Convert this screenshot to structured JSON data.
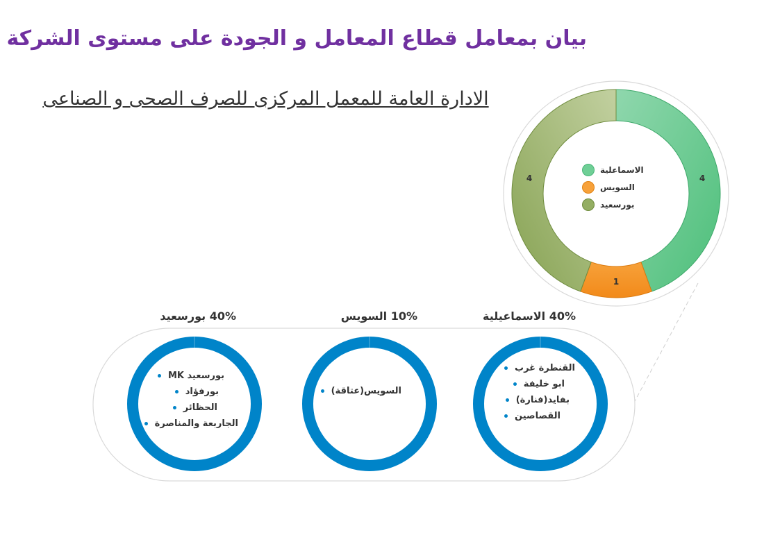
{
  "title": "بيان بمعامل قطاع المعامل و الجودة على مستوى الشركة",
  "subtitle": "الادارة العامة للمعمل المركزى للصرف الصحى و الصناعى",
  "chart_data": [
    {
      "type": "donut",
      "categories": [
        "الاسماعلية",
        "السويس",
        "بورسعيد"
      ],
      "values": [
        4,
        1,
        4
      ],
      "colors": [
        "#5fc88a",
        "#f7941d",
        "#8aa655"
      ],
      "legend": "center"
    },
    {
      "type": "donut",
      "label": "40%  الاسماعيلية",
      "value_percent": 40,
      "color": "#0084c9",
      "items": [
        "القنطرة غرب",
        "ابو خليفة",
        "بفايد(فنارة)",
        "القصاصين"
      ]
    },
    {
      "type": "donut",
      "label": "10% السويس",
      "value_percent": 10,
      "color": "#0084c9",
      "items": [
        "السويس(عتاقة)"
      ]
    },
    {
      "type": "donut",
      "label": "40% بورسعيد",
      "value_percent": 40,
      "color": "#0084c9",
      "items": [
        "بورسعيد MK",
        "بورفؤاد",
        "الحظائر",
        "الجاربعة والمناصرة"
      ]
    }
  ]
}
